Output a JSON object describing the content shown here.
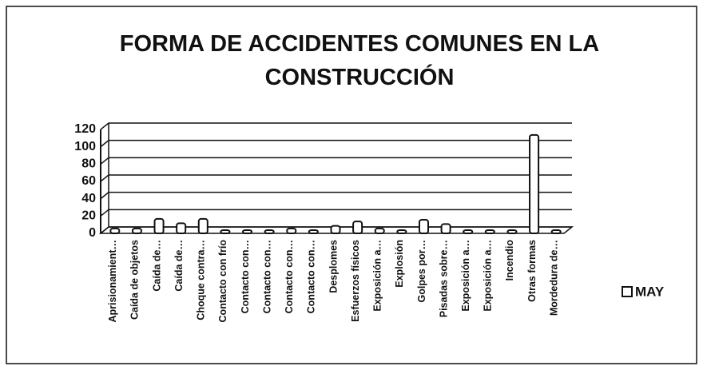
{
  "chart_data": {
    "type": "bar",
    "title": "FORMA DE ACCIDENTES COMUNES EN LA CONSTRUCCIÓN",
    "categories": [
      "Aprisionamient…",
      "Caída de objetos",
      "Caída de…",
      "Caída de…",
      "Choque contra…",
      "Contacto con frío",
      "Contacto con…",
      "Contacto con…",
      "Contacto con…",
      "Contacto con…",
      "Desplomes",
      "Esfuerzos físicos",
      "Exposición a…",
      "Explosión",
      "Golpes por…",
      "Pisadas sobre…",
      "Exposición a…",
      "Exposición a…",
      "Incendio",
      "Otras formas",
      "Mordedura de…"
    ],
    "series": [
      {
        "name": "MAY",
        "color": "#ffffff",
        "values": [
          2,
          2,
          13,
          8,
          13,
          0,
          0,
          0,
          2,
          0,
          5,
          10,
          2,
          0,
          12,
          7,
          0,
          0,
          0,
          110,
          0
        ]
      }
    ],
    "ylim": [
      0,
      120
    ],
    "yticks": [
      0,
      20,
      40,
      60,
      80,
      100,
      120
    ],
    "grid": true,
    "legend": "right"
  }
}
